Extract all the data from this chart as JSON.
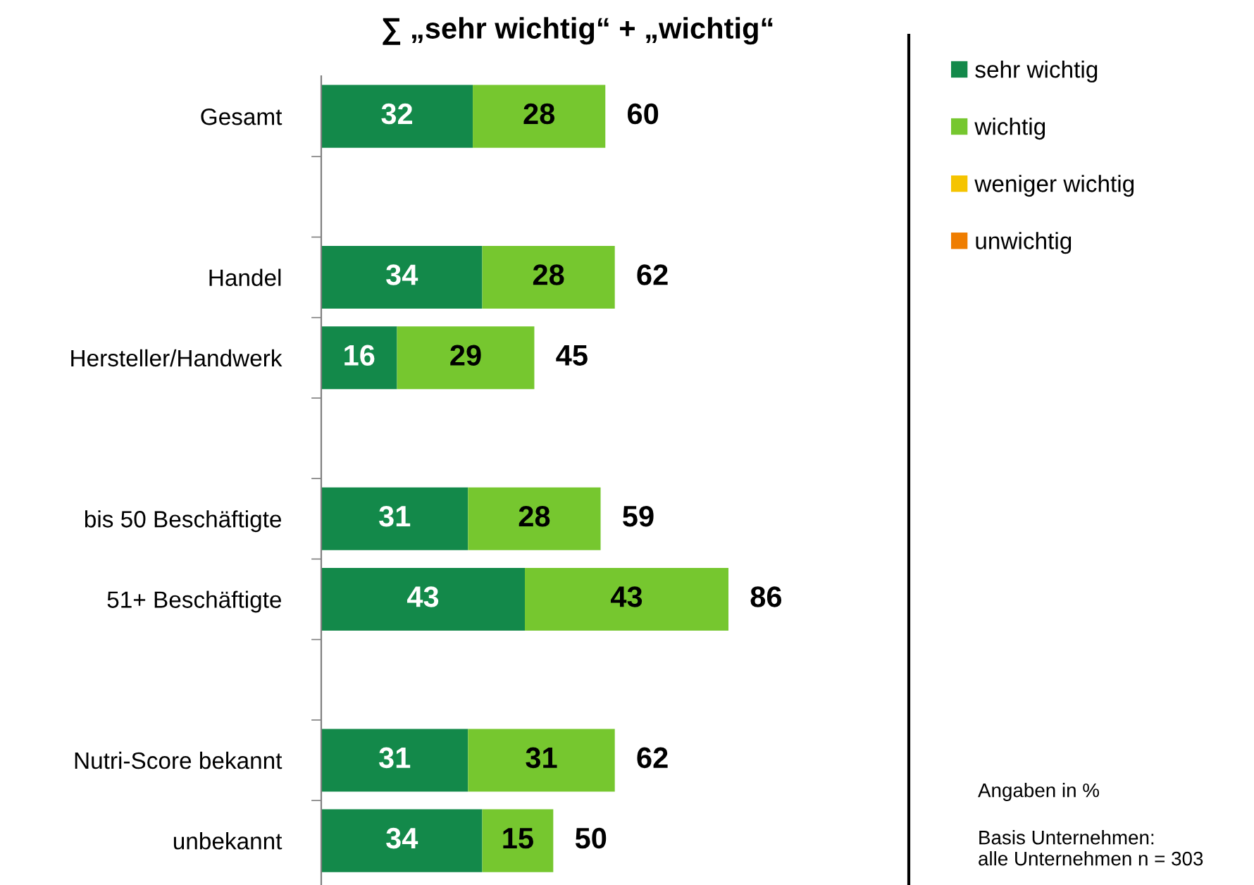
{
  "chart_data": {
    "type": "bar",
    "orientation": "horizontal",
    "stacked": true,
    "title": "∑ „sehr wichtig“ + „wichtig“",
    "categories": [
      "Gesamt",
      null,
      "Handel",
      "Hersteller/Handwerk",
      null,
      "bis 50 Beschäftigte",
      "51+ Beschäftigte",
      null,
      "Nutri-Score bekannt",
      "unbekannt"
    ],
    "series": [
      {
        "name": "sehr wichtig",
        "color": "#13894a",
        "values": [
          32,
          null,
          34,
          16,
          null,
          31,
          43,
          null,
          31,
          34
        ]
      },
      {
        "name": "wichtig",
        "color": "#76c72f",
        "values": [
          28,
          null,
          28,
          29,
          null,
          28,
          43,
          null,
          31,
          15
        ]
      },
      {
        "name": "weniger wichtig",
        "color": "#f5c400",
        "values": [
          null,
          null,
          null,
          null,
          null,
          null,
          null,
          null,
          null,
          null
        ]
      },
      {
        "name": "unwichtig",
        "color": "#ef7d00",
        "values": [
          null,
          null,
          null,
          null,
          null,
          null,
          null,
          null,
          null,
          null
        ]
      }
    ],
    "totals": [
      "60",
      null,
      "62",
      "45",
      null,
      "59",
      "86",
      null,
      "62",
      "50"
    ],
    "data_labels": true,
    "legend": "top right",
    "grid": false,
    "annotations": [
      "Angaben in %",
      "Basis Unternehmen:\nalle Unternehmen n = 303"
    ]
  }
}
